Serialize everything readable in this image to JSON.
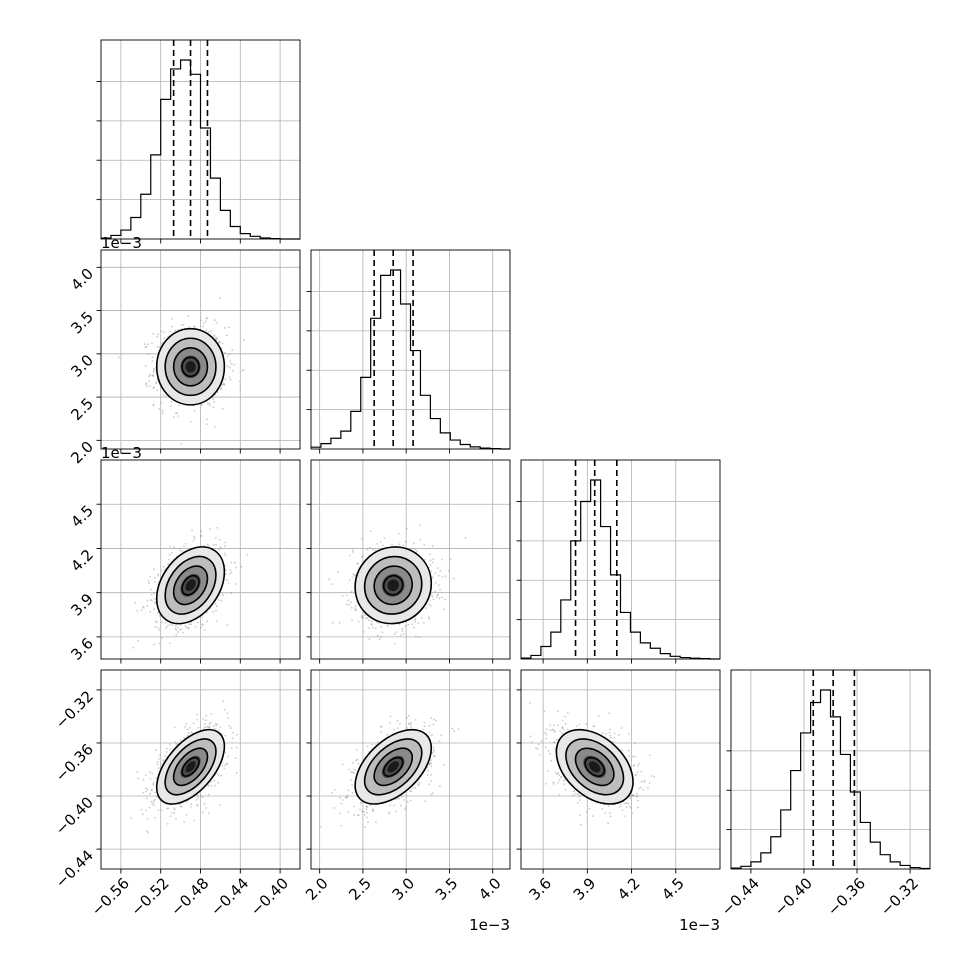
{
  "chart_data": {
    "type": "corner",
    "dimensions": 4,
    "grid": true,
    "params": [
      {
        "range": [
          -0.58,
          -0.38
        ],
        "ticks": [
          -0.56,
          -0.52,
          -0.48,
          -0.44,
          -0.4
        ],
        "tick_labels": [
          "−0.56",
          "−0.52",
          "−0.48",
          "−0.44",
          "−0.40"
        ],
        "offset_text": "",
        "hist_ticks": [
          0.0,
          0.2,
          0.4,
          0.6,
          0.8
        ],
        "center": -0.49,
        "sigma": 0.017,
        "quantiles": [
          -0.507,
          -0.49,
          -0.473
        ],
        "hist_bins": [
          -0.58,
          -0.57,
          -0.56,
          -0.55,
          -0.54,
          -0.53,
          -0.52,
          -0.51,
          -0.5,
          -0.49,
          -0.48,
          -0.47,
          -0.46,
          -0.45,
          -0.44,
          -0.43,
          -0.42,
          -0.41,
          -0.4,
          -0.39,
          -0.38
        ],
        "hist_counts": [
          0.005,
          0.02,
          0.05,
          0.12,
          0.25,
          0.47,
          0.78,
          0.95,
          1.0,
          0.92,
          0.62,
          0.34,
          0.16,
          0.07,
          0.03,
          0.015,
          0.006,
          0.002,
          0.0,
          0.0
        ]
      },
      {
        "range": [
          1.9,
          4.2
        ],
        "ticks": [
          2.0,
          2.5,
          3.0,
          3.5,
          4.0
        ],
        "tick_labels": [
          "2.0",
          "2.5",
          "3.0",
          "3.5",
          "4.0"
        ],
        "offset_text": "1e−3",
        "hist_ticks": [
          0.0,
          0.2,
          0.4,
          0.6,
          0.8
        ],
        "center": 2.85,
        "sigma": 0.22,
        "quantiles": [
          2.63,
          2.85,
          3.08
        ],
        "hist_bins": [
          1.9,
          2.015,
          2.13,
          2.245,
          2.36,
          2.475,
          2.59,
          2.705,
          2.82,
          2.935,
          3.05,
          3.165,
          3.28,
          3.395,
          3.51,
          3.625,
          3.74,
          3.855,
          3.97,
          4.085,
          4.2
        ],
        "hist_counts": [
          0.01,
          0.03,
          0.06,
          0.1,
          0.21,
          0.4,
          0.73,
          0.97,
          1.0,
          0.81,
          0.55,
          0.3,
          0.17,
          0.09,
          0.05,
          0.025,
          0.012,
          0.005,
          0.002,
          0.0
        ]
      },
      {
        "range": [
          3.45,
          4.8
        ],
        "ticks": [
          3.6,
          3.9,
          4.2,
          4.5
        ],
        "tick_labels": [
          "3.6",
          "3.9",
          "4.2",
          "4.5"
        ],
        "offset_text": "1e−3",
        "hist_ticks": [
          0.0,
          0.2,
          0.4,
          0.6,
          0.8
        ],
        "center": 3.95,
        "sigma": 0.13,
        "quantiles": [
          3.82,
          3.95,
          4.1
        ],
        "hist_bins": [
          3.45,
          3.5175,
          3.585,
          3.6525,
          3.72,
          3.7875,
          3.855,
          3.9225,
          3.99,
          4.0575,
          4.125,
          4.1925,
          4.26,
          4.3275,
          4.395,
          4.4625,
          4.53,
          4.5975,
          4.665,
          4.7325,
          4.8
        ],
        "hist_counts": [
          0.005,
          0.02,
          0.07,
          0.15,
          0.33,
          0.66,
          0.88,
          1.0,
          0.74,
          0.47,
          0.26,
          0.15,
          0.09,
          0.06,
          0.03,
          0.015,
          0.008,
          0.004,
          0.002,
          0.0
        ]
      },
      {
        "range": [
          -0.455,
          -0.305
        ],
        "ticks": [
          -0.44,
          -0.4,
          -0.36,
          -0.32
        ],
        "tick_labels": [
          "−0.44",
          "−0.40",
          "−0.36",
          "−0.32"
        ],
        "offset_text": "",
        "hist_ticks": [
          0.0,
          0.2,
          0.4,
          0.6
        ],
        "center": -0.378,
        "sigma": 0.014,
        "quantiles": [
          -0.393,
          -0.378,
          -0.362
        ],
        "hist_bins": [
          -0.455,
          -0.4475,
          -0.44,
          -0.4325,
          -0.425,
          -0.4175,
          -0.41,
          -0.4025,
          -0.395,
          -0.3875,
          -0.38,
          -0.3725,
          -0.365,
          -0.3575,
          -0.35,
          -0.3425,
          -0.335,
          -0.3275,
          -0.32,
          -0.3125,
          -0.305
        ],
        "hist_counts": [
          0.005,
          0.015,
          0.04,
          0.09,
          0.18,
          0.33,
          0.55,
          0.76,
          0.93,
          1.0,
          0.85,
          0.64,
          0.43,
          0.26,
          0.15,
          0.08,
          0.04,
          0.02,
          0.008,
          0.003
        ]
      }
    ],
    "correlations": [
      [
        1.0,
        0.0,
        0.35,
        0.55
      ],
      [
        0.0,
        1.0,
        0.05,
        0.5
      ],
      [
        0.35,
        0.05,
        1.0,
        -0.4
      ],
      [
        0.55,
        0.5,
        -0.4,
        1.0
      ]
    ],
    "contour_levels": [
      0.5,
      1.0,
      1.5,
      2.0
    ],
    "n_scatter_points": 900
  }
}
